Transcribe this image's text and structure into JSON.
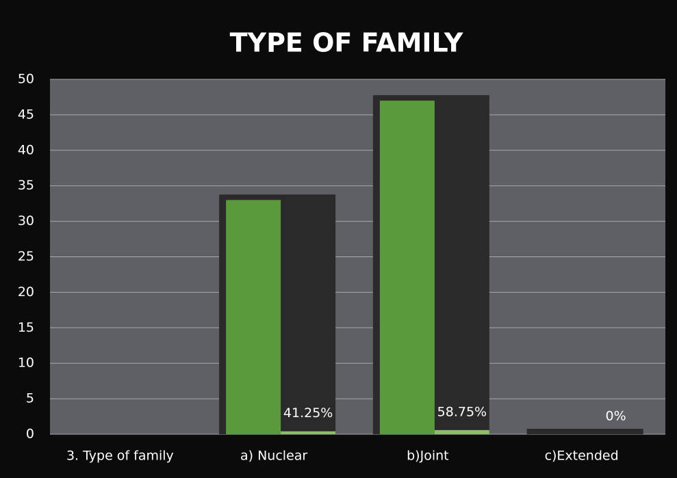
{
  "chart_data": {
    "type": "bar",
    "title": "TYPE OF FAMILY",
    "categories": [
      "3. Type of family",
      "a) Nuclear",
      "b)Joint",
      "c)Extended"
    ],
    "series": [
      {
        "color": "#5a9a3c",
        "values": [
          null,
          33,
          47,
          0
        ]
      },
      {
        "color": "#8cbc6c",
        "values": [
          null,
          0.4125,
          0.5875,
          0
        ],
        "value_labels": [
          null,
          "41.25%",
          "58.75%",
          "0%"
        ]
      }
    ],
    "ylim": [
      0,
      50
    ],
    "yticks": [
      0,
      5,
      10,
      15,
      20,
      25,
      30,
      35,
      40,
      45,
      50
    ],
    "grid": true
  }
}
